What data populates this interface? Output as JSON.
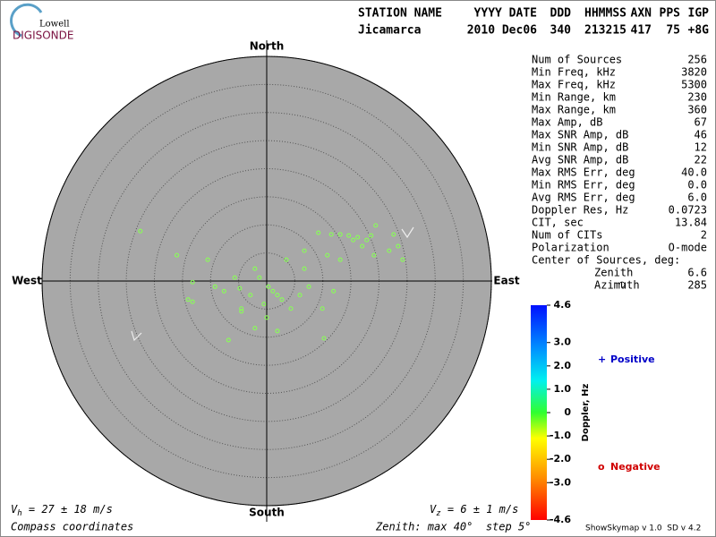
{
  "logo": {
    "top": "Lowell",
    "bottom": "DIGISONDE"
  },
  "header": {
    "columns": [
      "STATION NAME",
      "YYYY DATE",
      "DDD",
      "HHMMSS",
      "AXN",
      "PPS",
      "IGP"
    ],
    "values": [
      "Jicamarca",
      "2010 Dec06",
      "340",
      "213215",
      "417",
      "75",
      "+8G"
    ]
  },
  "chart_data": {
    "type": "scatter",
    "directions": {
      "north": "North",
      "south": "South",
      "west": "West",
      "east": "East"
    },
    "xlim": [
      -40,
      40
    ],
    "ylim": [
      -40,
      40
    ],
    "rticks": [
      5,
      10,
      15,
      20,
      25,
      30,
      35,
      40
    ],
    "color": "#88ff55",
    "grid": true,
    "x": [
      -22.5,
      -16.0,
      -10.5,
      -9.2,
      -13.2,
      -14.0,
      -7.6,
      -4.8,
      -4.5,
      -2.1,
      -1.3,
      0.3,
      1.1,
      1.9,
      2.7,
      0.0,
      -2.1,
      1.9,
      4.3,
      5.9,
      6.7,
      7.5,
      3.5,
      6.7,
      9.2,
      11.5,
      13.1,
      14.6,
      16.2,
      17.8,
      18.6,
      17.0,
      15.4,
      19.4,
      22.6,
      23.4,
      24.2,
      21.8,
      19.1,
      13.1,
      10.8,
      11.9,
      9.9,
      10.2,
      -6.8,
      -4.5,
      -0.5,
      -2.9,
      -5.7,
      -13.2
    ],
    "values": [
      8.9,
      4.6,
      3.8,
      -1.0,
      -3.7,
      -3.3,
      -1.8,
      -1.3,
      -4.9,
      2.2,
      0.6,
      -1.0,
      -1.8,
      -2.5,
      -3.3,
      -6.5,
      -8.4,
      -8.9,
      -4.9,
      -2.5,
      2.2,
      -1.0,
      3.8,
      5.4,
      8.6,
      8.3,
      8.3,
      8.1,
      7.8,
      7.3,
      8.1,
      6.2,
      7.3,
      9.9,
      8.3,
      6.2,
      3.8,
      5.4,
      4.6,
      3.8,
      4.6,
      -1.8,
      -4.9,
      -10.2,
      -10.5,
      -5.4,
      -4.1,
      -2.5,
      0.6,
      -0.2
    ],
    "colorbar": {
      "label": "Doppler, Hz",
      "lim": [
        -4.6,
        4.6
      ],
      "ticks": [
        4.6,
        {
          "value": 3,
          "label": "3.0"
        },
        {
          "value": 2,
          "label": "2.0"
        },
        {
          "value": 1,
          "label": "1.0"
        },
        0,
        {
          "value": -1,
          "label": "-1.0"
        },
        {
          "value": -2,
          "label": "-2.0"
        },
        {
          "value": -3,
          "label": "-3.0"
        },
        -4.6
      ]
    },
    "legend": [
      {
        "symbol": "+",
        "name": "Positive",
        "color": "#0000c8"
      },
      {
        "symbol": "o",
        "name": "Negative",
        "color": "#d00000"
      }
    ]
  },
  "stats": [
    [
      "Num of Sources",
      "256"
    ],
    [
      "Min Freq, kHz",
      "3820"
    ],
    [
      "Max Freq, kHz",
      "5300"
    ],
    [
      "Min Range, km",
      "230"
    ],
    [
      "Max Range, km",
      "360"
    ],
    [
      "Max Amp, dB",
      "67"
    ],
    [
      "Max SNR Amp, dB",
      "46"
    ],
    [
      "Min SNR Amp, dB",
      "12"
    ],
    [
      "Avg SNR Amp, dB",
      "22"
    ],
    [
      "Max RMS Err, deg",
      "40.0"
    ],
    [
      "Min RMS Err, deg",
      "0.0"
    ],
    [
      "Avg RMS Err, deg",
      "6.0"
    ],
    [
      "Doppler Res, Hz",
      "0.0723"
    ],
    [
      "CIT, sec",
      "13.84"
    ],
    [
      "Num of CITs",
      "2"
    ],
    [
      "Polarization",
      "O-mode"
    ]
  ],
  "center_label": "Center of Sources, deg:",
  "center": [
    [
      "Zenith",
      "6.6"
    ],
    [
      "Azimuth",
      "285"
    ]
  ],
  "footer": {
    "vh": {
      "symbol": "V",
      "subscript": "h",
      "text": " = 27 ± 18 m/s"
    },
    "vz": {
      "symbol": "V",
      "subscript": "z",
      "text": " = 6 ± 1 m/s"
    },
    "coords": "Compass coordinates",
    "zenith": "Zenith: max 40°  step 5°",
    "version": "ShowSkymap v 1.0  SD v 4.2"
  }
}
